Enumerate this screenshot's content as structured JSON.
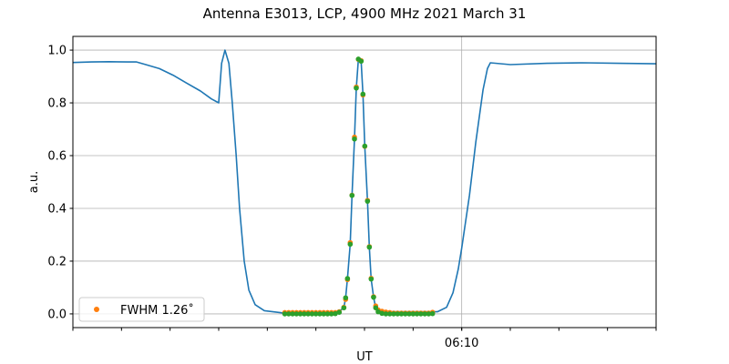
{
  "chart_data": {
    "type": "line",
    "title": "Antenna E3013, LCP, 4900 MHz 2021 March 31",
    "xlabel": "UT",
    "ylabel": "a.u.",
    "xunit": "seconds of day (UT)",
    "xlim": [
      36520,
      36640
    ],
    "ylim": [
      -0.052,
      1.052
    ],
    "xticks_minor_step": 10,
    "xtick_labels": [
      {
        "x": 36600,
        "label": "06:10"
      }
    ],
    "yticks": [
      0.0,
      0.2,
      0.4,
      0.6,
      0.8,
      1.0
    ],
    "ytick_labels": [
      "0.0",
      "0.2",
      "0.4",
      "0.6",
      "0.8",
      "1.0"
    ],
    "grid": true,
    "legend": {
      "position": "lower-left",
      "entries": [
        "FWHM 1.26˚"
      ]
    },
    "series": [
      {
        "kind": "line",
        "color": "#1f77b4",
        "points": [
          [
            36520,
            0.953
          ],
          [
            36523.75,
            0.955
          ],
          [
            36527.5,
            0.956
          ],
          [
            36531.25,
            0.955
          ],
          [
            36533.1,
            0.955
          ],
          [
            36535,
            0.945
          ],
          [
            36537.8,
            0.93
          ],
          [
            36540.6,
            0.905
          ],
          [
            36543.4,
            0.875
          ],
          [
            36546.25,
            0.845
          ],
          [
            36548.5,
            0.815
          ],
          [
            36550,
            0.8
          ],
          [
            36550.6,
            0.95
          ],
          [
            36551.3,
            1.0
          ],
          [
            36552.1,
            0.95
          ],
          [
            36552.8,
            0.8
          ],
          [
            36553.6,
            0.6
          ],
          [
            36554.3,
            0.4
          ],
          [
            36555.25,
            0.2
          ],
          [
            36556.2,
            0.09
          ],
          [
            36557.5,
            0.035
          ],
          [
            36559.4,
            0.012
          ],
          [
            36563.1,
            0.004
          ],
          [
            36574.4,
            0.005
          ],
          [
            36575.75,
            0.023
          ],
          [
            36576.12,
            0.061
          ],
          [
            36576.5,
            0.134
          ],
          [
            36577.06,
            0.264
          ],
          [
            36577.43,
            0.449
          ],
          [
            36577.94,
            0.663
          ],
          [
            36578.31,
            0.856
          ],
          [
            36578.74,
            0.966
          ],
          [
            36579.31,
            0.958
          ],
          [
            36579.68,
            0.833
          ],
          [
            36580.06,
            0.636
          ],
          [
            36580.62,
            0.427
          ],
          [
            36581.0,
            0.253
          ],
          [
            36581.37,
            0.132
          ],
          [
            36581.87,
            0.063
          ],
          [
            36582.31,
            0.023
          ],
          [
            36582.8,
            0.008
          ],
          [
            36595,
            0.008
          ],
          [
            36596.9,
            0.025
          ],
          [
            36598.2,
            0.08
          ],
          [
            36599.3,
            0.17
          ],
          [
            36600,
            0.25
          ],
          [
            36601.6,
            0.45
          ],
          [
            36602.9,
            0.65
          ],
          [
            36604.4,
            0.85
          ],
          [
            36605.3,
            0.93
          ],
          [
            36605.9,
            0.952
          ],
          [
            36610,
            0.945
          ],
          [
            36617.5,
            0.95
          ],
          [
            36625,
            0.952
          ],
          [
            36632.5,
            0.95
          ],
          [
            36640,
            0.948
          ]
        ]
      },
      {
        "kind": "scatter",
        "name": "FWHM 1.26˚",
        "color": "#ff7f0e",
        "points": [
          [
            36563.6,
            0.005
          ],
          [
            36564.4,
            0.005
          ],
          [
            36565.2,
            0.005
          ],
          [
            36566.0,
            0.005
          ],
          [
            36566.8,
            0.005
          ],
          [
            36567.6,
            0.005
          ],
          [
            36568.4,
            0.005
          ],
          [
            36569.2,
            0.005
          ],
          [
            36570.0,
            0.005
          ],
          [
            36570.8,
            0.005
          ],
          [
            36571.6,
            0.005
          ],
          [
            36572.4,
            0.005
          ],
          [
            36573.2,
            0.005
          ],
          [
            36574.0,
            0.005
          ],
          [
            36574.8,
            0.008
          ],
          [
            36575.75,
            0.025
          ],
          [
            36576.12,
            0.055
          ],
          [
            36576.5,
            0.13
          ],
          [
            36577.06,
            0.27
          ],
          [
            36577.43,
            0.45
          ],
          [
            36577.94,
            0.67
          ],
          [
            36578.31,
            0.86
          ],
          [
            36578.74,
            0.965
          ],
          [
            36579.31,
            0.96
          ],
          [
            36579.68,
            0.83
          ],
          [
            36580.06,
            0.635
          ],
          [
            36580.62,
            0.43
          ],
          [
            36581.0,
            0.255
          ],
          [
            36581.37,
            0.135
          ],
          [
            36581.87,
            0.065
          ],
          [
            36582.31,
            0.03
          ],
          [
            36582.81,
            0.015
          ],
          [
            36583.6,
            0.01
          ],
          [
            36584.4,
            0.007
          ],
          [
            36585.2,
            0.005
          ],
          [
            36586.0,
            0.003
          ],
          [
            36586.8,
            0.003
          ],
          [
            36587.6,
            0.003
          ],
          [
            36588.4,
            0.003
          ],
          [
            36589.2,
            0.003
          ],
          [
            36590.0,
            0.003
          ],
          [
            36590.8,
            0.003
          ],
          [
            36591.6,
            0.003
          ],
          [
            36592.4,
            0.003
          ],
          [
            36593.2,
            0.003
          ],
          [
            36594.0,
            0.006
          ]
        ]
      },
      {
        "kind": "scatter",
        "color": "#2ca02c",
        "points": [
          [
            36563.6,
            0.0
          ],
          [
            36564.4,
            0.0
          ],
          [
            36565.2,
            0.0
          ],
          [
            36566.0,
            0.0
          ],
          [
            36566.8,
            0.0
          ],
          [
            36567.6,
            0.0
          ],
          [
            36568.4,
            0.0
          ],
          [
            36569.2,
            0.0
          ],
          [
            36570.0,
            0.0
          ],
          [
            36570.8,
            0.0
          ],
          [
            36571.6,
            0.0
          ],
          [
            36572.4,
            0.0
          ],
          [
            36573.2,
            0.0
          ],
          [
            36574.0,
            0.001
          ],
          [
            36574.8,
            0.006
          ],
          [
            36575.75,
            0.023
          ],
          [
            36576.12,
            0.061
          ],
          [
            36576.5,
            0.134
          ],
          [
            36577.06,
            0.264
          ],
          [
            36577.43,
            0.449
          ],
          [
            36577.94,
            0.663
          ],
          [
            36578.31,
            0.856
          ],
          [
            36578.74,
            0.966
          ],
          [
            36579.31,
            0.958
          ],
          [
            36579.68,
            0.833
          ],
          [
            36580.06,
            0.636
          ],
          [
            36580.62,
            0.427
          ],
          [
            36581.0,
            0.253
          ],
          [
            36581.37,
            0.132
          ],
          [
            36581.87,
            0.063
          ],
          [
            36582.31,
            0.023
          ],
          [
            36582.81,
            0.008
          ],
          [
            36583.6,
            0.002
          ],
          [
            36584.4,
            0.0
          ],
          [
            36585.2,
            0.0
          ],
          [
            36586.0,
            0.0
          ],
          [
            36586.8,
            0.0
          ],
          [
            36587.6,
            0.0
          ],
          [
            36588.4,
            0.0
          ],
          [
            36589.2,
            0.0
          ],
          [
            36590.0,
            0.0
          ],
          [
            36590.8,
            0.0
          ],
          [
            36591.6,
            0.0
          ],
          [
            36592.4,
            0.0
          ],
          [
            36593.2,
            0.0
          ],
          [
            36594.0,
            0.001
          ]
        ]
      }
    ]
  }
}
